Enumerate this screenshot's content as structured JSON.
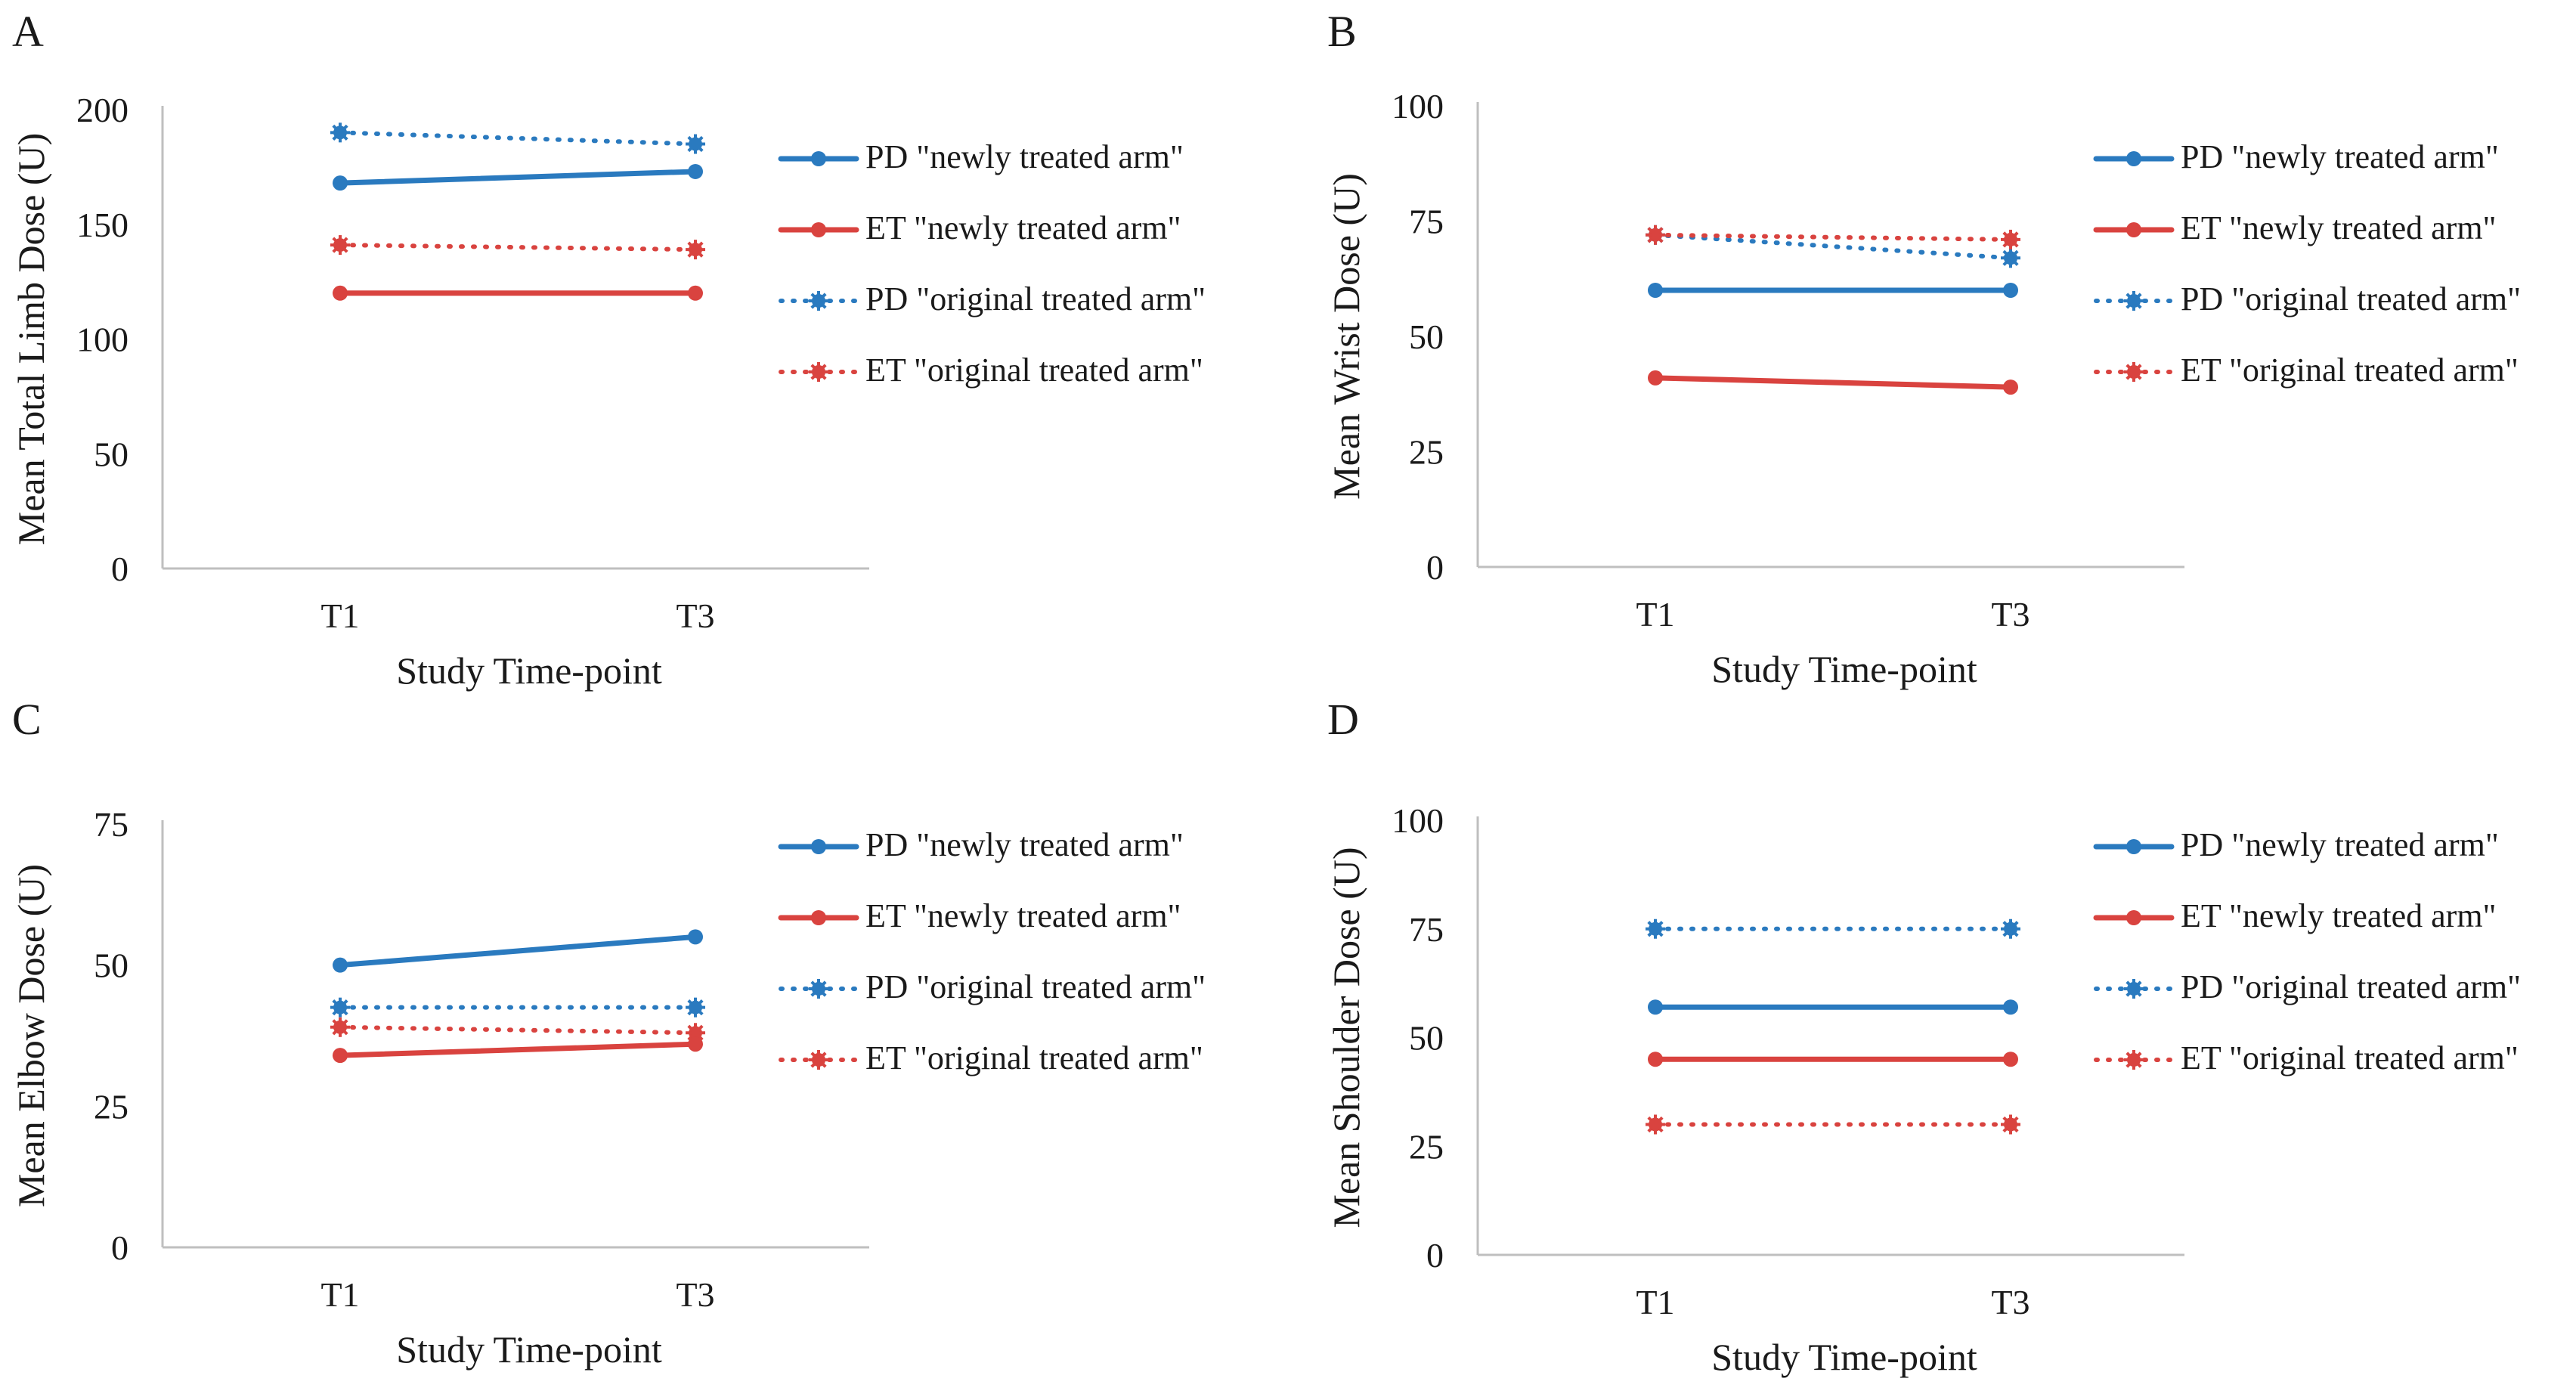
{
  "colors": {
    "pd": "#2a7abf",
    "et": "#d9433f",
    "axis": "#bfbfbf"
  },
  "chart_data": [
    {
      "type": "line",
      "panel": "A",
      "ylabel": "Mean Total Limb Dose (U)",
      "xlabel": "Study Time-point",
      "categories": [
        "T1",
        "T3"
      ],
      "ylim": [
        0,
        200
      ],
      "yticks": [
        0,
        50,
        100,
        150,
        200
      ],
      "series": [
        {
          "name": "PD \"newly treated arm\"",
          "group": "pd",
          "style": "solid",
          "values": [
            168,
            173
          ]
        },
        {
          "name": "ET \"newly treated arm\"",
          "group": "et",
          "style": "solid",
          "values": [
            120,
            120
          ]
        },
        {
          "name": "PD \"original treated arm\"",
          "group": "pd",
          "style": "dotted",
          "values": [
            190,
            185
          ]
        },
        {
          "name": "ET \"original treated arm\"",
          "group": "et",
          "style": "dotted",
          "values": [
            141,
            139
          ]
        }
      ]
    },
    {
      "type": "line",
      "panel": "B",
      "ylabel": "Mean Wrist Dose (U)",
      "xlabel": "Study Time-point",
      "categories": [
        "T1",
        "T3"
      ],
      "ylim": [
        0,
        100
      ],
      "yticks": [
        0,
        25,
        50,
        75,
        100
      ],
      "series": [
        {
          "name": "PD \"newly treated arm\"",
          "group": "pd",
          "style": "solid",
          "values": [
            60,
            60
          ]
        },
        {
          "name": "ET \"newly treated arm\"",
          "group": "et",
          "style": "solid",
          "values": [
            41,
            39
          ]
        },
        {
          "name": "PD \"original treated arm\"",
          "group": "pd",
          "style": "dotted",
          "values": [
            72,
            67
          ]
        },
        {
          "name": "ET \"original treated arm\"",
          "group": "et",
          "style": "dotted",
          "values": [
            72,
            71
          ]
        }
      ]
    },
    {
      "type": "line",
      "panel": "C",
      "ylabel": "Mean Elbow Dose (U)",
      "xlabel": "Study Time-point",
      "categories": [
        "T1",
        "T3"
      ],
      "ylim": [
        0,
        75
      ],
      "yticks": [
        0,
        25,
        50,
        75
      ],
      "series": [
        {
          "name": "PD \"newly treated arm\"",
          "group": "pd",
          "style": "solid",
          "values": [
            50,
            55
          ]
        },
        {
          "name": "ET \"newly treated arm\"",
          "group": "et",
          "style": "solid",
          "values": [
            34,
            36
          ]
        },
        {
          "name": "PD \"original treated arm\"",
          "group": "pd",
          "style": "dotted",
          "values": [
            42.5,
            42.5
          ]
        },
        {
          "name": "ET \"original treated arm\"",
          "group": "et",
          "style": "dotted",
          "values": [
            39,
            38
          ]
        }
      ]
    },
    {
      "type": "line",
      "panel": "D",
      "ylabel": "Mean Shoulder Dose (U)",
      "xlabel": "Study Time-point",
      "categories": [
        "T1",
        "T3"
      ],
      "ylim": [
        0,
        100
      ],
      "yticks": [
        0,
        25,
        50,
        75,
        100
      ],
      "series": [
        {
          "name": "PD \"newly treated arm\"",
          "group": "pd",
          "style": "solid",
          "values": [
            57,
            57
          ]
        },
        {
          "name": "ET \"newly treated arm\"",
          "group": "et",
          "style": "solid",
          "values": [
            45,
            45
          ]
        },
        {
          "name": "PD \"original treated arm\"",
          "group": "pd",
          "style": "dotted",
          "values": [
            75,
            75
          ]
        },
        {
          "name": "ET \"original treated arm\"",
          "group": "et",
          "style": "dotted",
          "values": [
            30,
            30
          ]
        }
      ]
    }
  ]
}
